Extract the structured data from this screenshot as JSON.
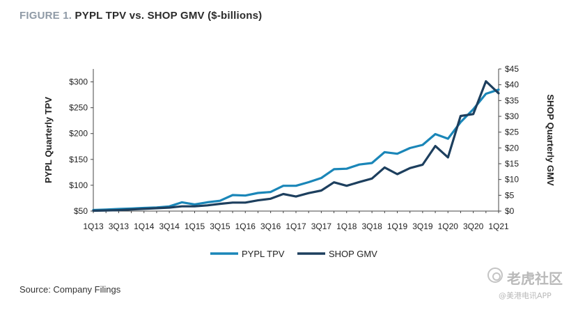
{
  "title": {
    "figure_label": "FIGURE 1.",
    "text": "PYPL TPV vs. SHOP GMV ($-billions)"
  },
  "source": "Source: Company Filings",
  "watermark": {
    "main": "老虎社区",
    "sub": "@美港电讯APP"
  },
  "colors": {
    "pypl": "#1a86b8",
    "shop": "#1d3f5e",
    "axis": "#444444"
  },
  "chart_data": {
    "type": "line",
    "x_tick_labels": [
      "1Q13",
      "3Q13",
      "1Q14",
      "3Q14",
      "1Q15",
      "3Q15",
      "1Q16",
      "3Q16",
      "1Q17",
      "3Q17",
      "1Q18",
      "3Q18",
      "1Q19",
      "3Q19",
      "1Q20",
      "3Q20",
      "1Q21"
    ],
    "x": [
      "1Q13",
      "2Q13",
      "3Q13",
      "4Q13",
      "1Q14",
      "2Q14",
      "3Q14",
      "4Q14",
      "1Q15",
      "2Q15",
      "3Q15",
      "4Q15",
      "1Q16",
      "2Q16",
      "3Q16",
      "4Q16",
      "1Q17",
      "2Q17",
      "3Q17",
      "4Q17",
      "1Q18",
      "2Q18",
      "3Q18",
      "4Q18",
      "1Q19",
      "2Q19",
      "3Q19",
      "4Q19",
      "1Q20",
      "2Q20",
      "3Q20",
      "4Q20",
      "1Q21"
    ],
    "ylabel_left": "PYPL Quarterly TPV",
    "ylabel_right": "SHOP Quarterly GMV",
    "ylim_left": [
      50,
      325
    ],
    "ylim_right": [
      0,
      45
    ],
    "yticks_left": [
      "$50",
      "$100",
      "$150",
      "$200",
      "$250",
      "$300"
    ],
    "yticks_right": [
      "$0",
      "$5",
      "$10",
      "$15",
      "$20",
      "$25",
      "$30",
      "$35",
      "$40",
      "$45"
    ],
    "series": [
      {
        "name": "PYPL TPV",
        "axis": "left",
        "values": [
          52,
          53,
          54,
          55,
          56,
          57,
          59,
          67,
          63,
          67,
          70,
          81,
          80,
          85,
          87,
          99,
          99,
          106,
          114,
          131,
          132,
          140,
          143,
          164,
          161,
          172,
          178,
          199,
          190,
          222,
          247,
          277,
          285
        ]
      },
      {
        "name": "SHOP GMV",
        "axis": "right",
        "values": [
          0.1,
          0.2,
          0.3,
          0.5,
          0.7,
          0.9,
          1.1,
          1.5,
          1.5,
          1.8,
          2.3,
          2.7,
          2.7,
          3.4,
          3.9,
          5.4,
          4.6,
          5.7,
          6.5,
          9.1,
          8.0,
          9.2,
          10.3,
          13.8,
          11.7,
          13.6,
          14.7,
          20.6,
          17.0,
          30.1,
          30.7,
          41.1,
          37.3
        ]
      }
    ],
    "legend": {
      "position": "bottom-center"
    },
    "grid": false
  }
}
